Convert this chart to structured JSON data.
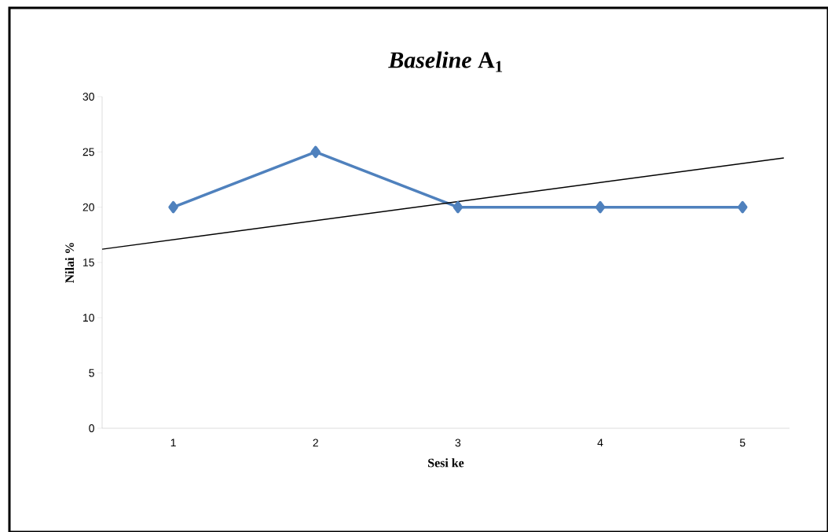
{
  "chart_data": {
    "type": "line",
    "title": "*Baseline* A$_{1}$",
    "xlabel": "Sesi ke",
    "ylabel": "Nilai %",
    "x": [
      1,
      2,
      3,
      4,
      5
    ],
    "xlim": [
      0.5,
      5.33
    ],
    "xticks": [
      1,
      2,
      3,
      4,
      5
    ],
    "ylim": [
      0,
      30
    ],
    "yticks": [
      0,
      5,
      10,
      15,
      20,
      25,
      30
    ],
    "marker": "diamond",
    "series": [
      {
        "color": "#4f81bd",
        "values": [
          20,
          25,
          20,
          20,
          20
        ]
      },
      {
        "type": "line",
        "color": "#000000",
        "x": [
          0.5,
          5.29
        ],
        "values": [
          16.2,
          24.45
        ],
        "marker": "none"
      }
    ]
  }
}
